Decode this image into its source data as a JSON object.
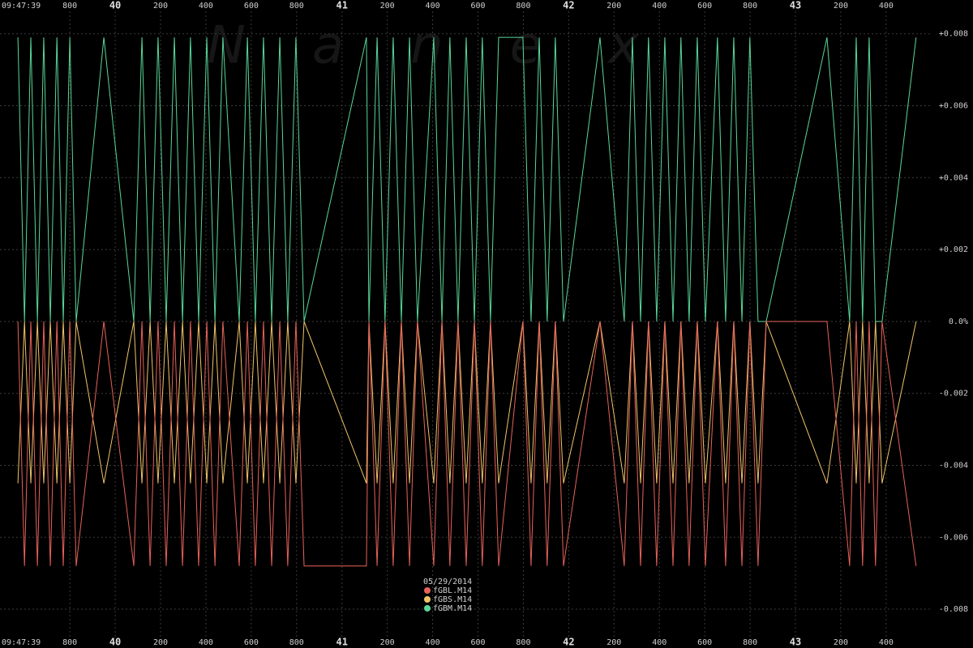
{
  "chart_data": {
    "type": "line",
    "watermark": "Nanex",
    "x_start_label": "09:47:39",
    "legend_title": "05/29/2014",
    "grid": true,
    "xlim": [
      39.492,
      43.783
    ],
    "ylim": [
      -0.00908,
      0.00894
    ],
    "xticks": [
      {
        "value": 39.8,
        "label": "800"
      },
      40,
      {
        "value": 40.2,
        "label": "200"
      },
      {
        "value": 40.4,
        "label": "400"
      },
      {
        "value": 40.6,
        "label": "600"
      },
      {
        "value": 40.8,
        "label": "800"
      },
      41,
      {
        "value": 41.2,
        "label": "200"
      },
      {
        "value": 41.4,
        "label": "400"
      },
      {
        "value": 41.6,
        "label": "600"
      },
      {
        "value": 41.8,
        "label": "800"
      },
      42,
      {
        "value": 42.2,
        "label": "200"
      },
      {
        "value": 42.4,
        "label": "400"
      },
      {
        "value": 42.6,
        "label": "600"
      },
      {
        "value": 42.8,
        "label": "800"
      },
      43,
      {
        "value": 43.2,
        "label": "200"
      },
      {
        "value": 43.4,
        "label": "400"
      }
    ],
    "yticks": [
      {
        "value": 0.008,
        "label": "+0.008"
      },
      {
        "value": 0.006,
        "label": "+0.006"
      },
      {
        "value": 0.004,
        "label": "+0.004"
      },
      {
        "value": 0.002,
        "label": "+0.002"
      },
      {
        "value": 0,
        "label": "0.0%"
      },
      {
        "value": -0.002,
        "label": "-0.002"
      },
      {
        "value": -0.004,
        "label": "-0.004"
      },
      {
        "value": -0.006,
        "label": "-0.006"
      },
      {
        "value": -0.008,
        "label": "-0.008"
      }
    ],
    "x": [
      39.571,
      39.6,
      39.628,
      39.657,
      39.685,
      39.714,
      39.743,
      39.771,
      39.8,
      39.828,
      39.95,
      40.082,
      40.118,
      40.154,
      40.189,
      40.225,
      40.261,
      40.297,
      40.332,
      40.368,
      40.404,
      40.44,
      40.475,
      40.547,
      40.583,
      40.618,
      40.654,
      40.69,
      40.726,
      40.761,
      40.797,
      40.833,
      41.108,
      41.119,
      41.155,
      41.19,
      41.226,
      41.262,
      41.298,
      41.333,
      41.405,
      41.441,
      41.476,
      41.512,
      41.548,
      41.584,
      41.619,
      41.655,
      41.691,
      41.798,
      41.834,
      41.87,
      41.905,
      41.941,
      41.977,
      42.138,
      42.245,
      42.281,
      42.317,
      42.352,
      42.388,
      42.424,
      42.46,
      42.495,
      42.531,
      42.567,
      42.603,
      42.656,
      42.692,
      42.728,
      42.764,
      42.799,
      42.835,
      42.871,
      43.139,
      43.239,
      43.268,
      43.296,
      43.325,
      43.353,
      43.382,
      43.532
    ],
    "series": [
      {
        "name": "fGBL.M14",
        "color": "#e8625a",
        "values": [
          0,
          -0.0068,
          0,
          -0.0068,
          0,
          -0.0068,
          0,
          -0.0068,
          0,
          -0.0068,
          0,
          -0.0068,
          0,
          -0.0068,
          0,
          -0.0068,
          0,
          -0.0068,
          0,
          -0.0068,
          0,
          -0.0068,
          0,
          -0.0068,
          0,
          -0.0068,
          0,
          -0.0068,
          0,
          -0.0068,
          0,
          -0.0068,
          -0.0068,
          0,
          -0.0068,
          0,
          -0.0068,
          0,
          -0.0068,
          0,
          -0.0068,
          0,
          -0.0068,
          0,
          -0.0068,
          0,
          -0.0068,
          0,
          -0.0068,
          0,
          -0.0068,
          0,
          -0.0068,
          0,
          -0.0068,
          0,
          -0.0068,
          0,
          -0.0068,
          0,
          -0.0068,
          0,
          -0.0068,
          0,
          -0.0068,
          0,
          -0.0068,
          0,
          -0.0068,
          0,
          -0.0068,
          0,
          -0.0068,
          0,
          0,
          -0.0068,
          0,
          -0.0068,
          0,
          -0.0068,
          0,
          -0.0068
        ]
      },
      {
        "name": "fGBS.M14",
        "color": "#f0c468",
        "values": [
          -0.0045,
          0,
          -0.0045,
          0,
          -0.0045,
          0,
          -0.0045,
          0,
          -0.0045,
          0,
          -0.0045,
          0,
          -0.0045,
          0,
          -0.0045,
          0,
          -0.0045,
          0,
          -0.0045,
          0,
          -0.0045,
          0,
          -0.0045,
          0,
          -0.0045,
          0,
          -0.0045,
          0,
          -0.0045,
          0,
          -0.0045,
          0,
          -0.0045,
          0,
          -0.0045,
          0,
          -0.0045,
          0,
          -0.0045,
          0,
          -0.0045,
          0,
          -0.0045,
          0,
          -0.0045,
          0,
          -0.0045,
          0,
          -0.0045,
          0,
          -0.0045,
          0,
          -0.0045,
          0,
          -0.0045,
          0,
          -0.0045,
          0,
          -0.0045,
          0,
          -0.0045,
          0,
          -0.0045,
          0,
          -0.0045,
          0,
          -0.0045,
          0,
          -0.0045,
          0,
          -0.0045,
          0,
          -0.0045,
          0,
          -0.0045,
          0,
          -0.0045,
          0,
          -0.0045,
          0,
          -0.0045,
          0
        ]
      },
      {
        "name": "fGBM.M14",
        "color": "#58d898",
        "values": [
          0.0079,
          0,
          0.0079,
          0,
          0.0079,
          0,
          0.0079,
          0,
          0.0079,
          0,
          0.0079,
          0,
          0.0079,
          0,
          0.0079,
          0,
          0.0079,
          0,
          0.0079,
          0,
          0.0079,
          0,
          0.0079,
          0,
          0.0079,
          0,
          0.0079,
          0,
          0.0079,
          0,
          0.0079,
          0,
          0.0079,
          0,
          0.0079,
          0,
          0.0079,
          0,
          0.0079,
          0,
          0.0079,
          0,
          0.0079,
          0,
          0.0079,
          0,
          0.0079,
          0,
          0.0079,
          0.0079,
          0,
          0.0079,
          0,
          0.0079,
          0,
          0.0079,
          0,
          0.0079,
          0,
          0.0079,
          0,
          0.0079,
          0,
          0.0079,
          0,
          0.0079,
          0,
          0.0079,
          0,
          0.0079,
          0,
          0.0079,
          0,
          0,
          0.0079,
          0,
          0.0079,
          0,
          0.0079,
          0,
          0,
          0.0079
        ]
      }
    ]
  }
}
